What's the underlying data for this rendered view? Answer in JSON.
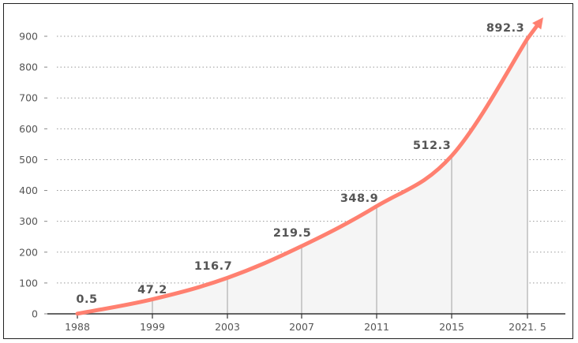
{
  "chart_data": {
    "type": "area",
    "categories": [
      "1988",
      "1999",
      "2003",
      "2007",
      "2011",
      "2015",
      "2021. 5"
    ],
    "values": [
      0.5,
      47.2,
      116.7,
      219.5,
      348.9,
      512.3,
      892.3
    ],
    "data_labels": [
      "0.5",
      "47.2",
      "116.7",
      "219.5",
      "348.9",
      "512.3",
      "892.3"
    ],
    "y_ticks": [
      "0",
      "100",
      "200",
      "300",
      "400",
      "500",
      "600",
      "700",
      "800",
      "900"
    ],
    "ylim": [
      0,
      900
    ],
    "title": "",
    "xlabel": "",
    "ylabel": "",
    "grid": true,
    "legend": "none",
    "colors": {
      "line": "#ff8070",
      "area": "#f5f5f5",
      "drop_line": "#bdbdbd",
      "grid": "#999999",
      "text": "#555555",
      "axis": "#333333"
    }
  }
}
